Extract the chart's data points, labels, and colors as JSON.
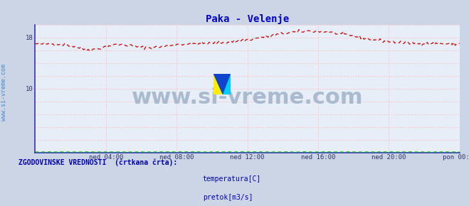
{
  "title": "Paka - Velenje",
  "title_color": "#0000cc",
  "title_fontsize": 10,
  "bg_color": "#ccd5e5",
  "plot_bg_color": "#e8eef8",
  "grid_color": "#ffbbbb",
  "spine_color": "#3333bb",
  "watermark_text": "www.si-vreme.com",
  "watermark_color": "#aabbd0",
  "watermark_fontsize": 22,
  "ylabel_text": "www.si-vreme.com",
  "ylabel_color": "#4488cc",
  "ylabel_fontsize": 6,
  "ylim": [
    0,
    20
  ],
  "ytick_positions": [
    0,
    2,
    4,
    6,
    8,
    10,
    12,
    14,
    16,
    18,
    20
  ],
  "ytick_labels_show": {
    "10": "10",
    "18": "18"
  },
  "xlim": [
    0,
    288
  ],
  "xtick_positions": [
    0,
    48,
    96,
    144,
    192,
    240,
    288
  ],
  "xtick_labels": [
    "",
    "ned 04:00",
    "ned 08:00",
    "ned 12:00",
    "ned 16:00",
    "ned 20:00",
    "pon 00:00"
  ],
  "temp_color": "#cc0000",
  "flow_color": "#00bb00",
  "legend_text_color": "#0000bb",
  "legend_label": "ZGODOVINSKE VREDNOSTI  (črtkana črta):",
  "legend_temp": "temperatura[C]",
  "legend_flow": "pretok[m3/s]"
}
